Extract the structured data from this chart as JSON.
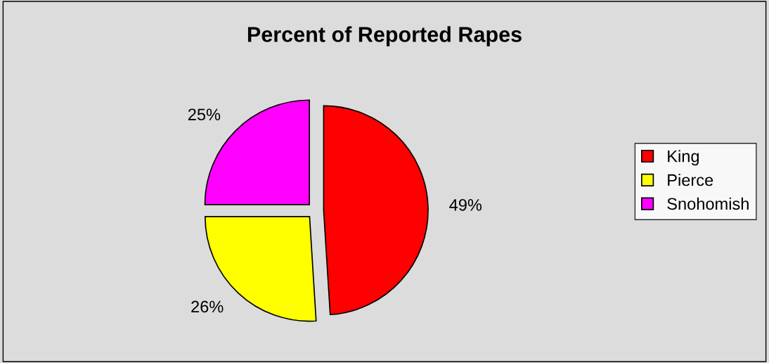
{
  "chart_data": {
    "type": "pie",
    "title": "Percent of Reported Rapes",
    "categories": [
      "King",
      "Pierce",
      "Snohomish"
    ],
    "values": [
      49,
      26,
      25
    ],
    "colors": [
      "#ff0000",
      "#ffff00",
      "#ff00ff"
    ],
    "value_labels": [
      "49%",
      "26%",
      "25%"
    ],
    "legend": "right"
  }
}
